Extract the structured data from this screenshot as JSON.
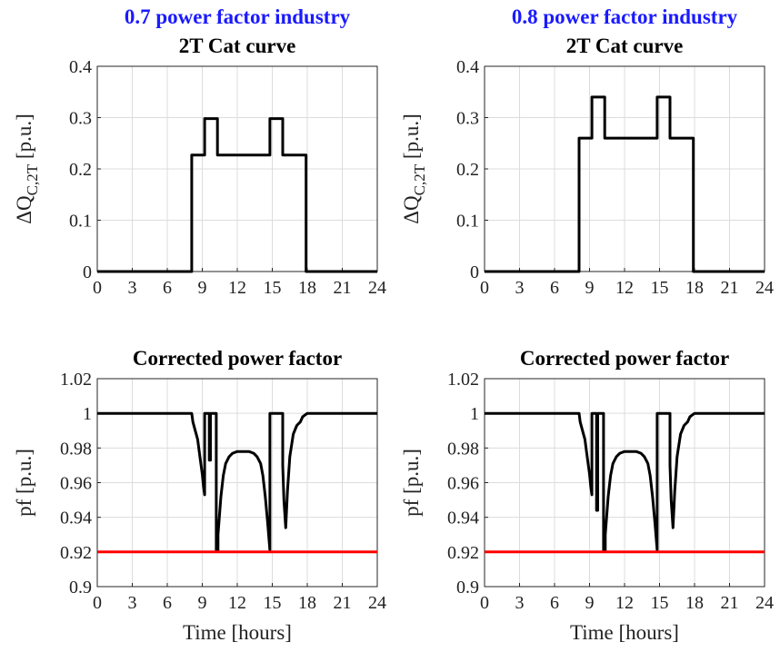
{
  "chart_data": [
    {
      "type": "line",
      "suptitle": "0.7 power factor industry",
      "title": "2T Cat curve",
      "ylabel_prefix": "ΔQ",
      "ylabel_sub": "C,2T",
      "ylabel_suffix": " [p.u.]",
      "xlabel": "",
      "xlim": [
        0,
        24
      ],
      "ylim": [
        0,
        0.4
      ],
      "xticks": [
        "0",
        "3",
        "6",
        "9",
        "12",
        "15",
        "18",
        "21",
        "24"
      ],
      "yticks": [
        "0",
        "0.1",
        "0.2",
        "0.3",
        "0.4"
      ],
      "grid": true,
      "series": [
        {
          "color": "#000000",
          "x": [
            0,
            8.1,
            8.1,
            9.2,
            9.2,
            10.3,
            10.3,
            14.8,
            14.8,
            15.9,
            15.9,
            17.9,
            17.9,
            24
          ],
          "y": [
            0,
            0,
            0.227,
            0.227,
            0.298,
            0.298,
            0.227,
            0.227,
            0.298,
            0.298,
            0.227,
            0.227,
            0,
            0
          ]
        }
      ]
    },
    {
      "type": "line",
      "suptitle": "0.8 power factor industry",
      "title": "2T Cat curve",
      "ylabel_prefix": "ΔQ",
      "ylabel_sub": "C,2T",
      "ylabel_suffix": " [p.u.]",
      "xlabel": "",
      "xlim": [
        0,
        24
      ],
      "ylim": [
        0,
        0.4
      ],
      "xticks": [
        "0",
        "3",
        "6",
        "9",
        "12",
        "15",
        "18",
        "21",
        "24"
      ],
      "yticks": [
        "0",
        "0.1",
        "0.2",
        "0.3",
        "0.4"
      ],
      "grid": true,
      "series": [
        {
          "color": "#000000",
          "x": [
            0,
            8.1,
            8.1,
            9.2,
            9.2,
            10.3,
            10.3,
            14.8,
            14.8,
            15.9,
            15.9,
            17.9,
            17.9,
            24
          ],
          "y": [
            0,
            0,
            0.26,
            0.26,
            0.34,
            0.34,
            0.26,
            0.26,
            0.34,
            0.34,
            0.26,
            0.26,
            0,
            0
          ]
        }
      ]
    },
    {
      "type": "line",
      "suptitle": "",
      "title": "Corrected power factor",
      "ylabel_prefix": "pf [p.u.]",
      "ylabel_sub": "",
      "ylabel_suffix": "",
      "xlabel": "Time [hours]",
      "xlim": [
        0,
        24
      ],
      "ylim": [
        0.9,
        1.02
      ],
      "xticks": [
        "0",
        "3",
        "6",
        "9",
        "12",
        "15",
        "18",
        "21",
        "24"
      ],
      "yticks": [
        "0.9",
        "0.92",
        "0.94",
        "0.96",
        "0.98",
        "1",
        "1.02"
      ],
      "grid": true,
      "series": [
        {
          "color": "#000000",
          "x": [
            0,
            8.1,
            8.2,
            8.4,
            8.6,
            8.8,
            9.0,
            9.1,
            9.2,
            9.2,
            9.6,
            9.6,
            9.7,
            9.7,
            10.2,
            10.2,
            10.35,
            10.35,
            10.6,
            10.8,
            11.0,
            11.3,
            11.6,
            12.0,
            12.5,
            13.0,
            13.4,
            13.7,
            14.0,
            14.2,
            14.4,
            14.6,
            14.8,
            14.8,
            15.9,
            15.9,
            16.0,
            16.15,
            16.3,
            16.5,
            16.8,
            17.1,
            17.4,
            17.6,
            17.8,
            18.0,
            24
          ],
          "y": [
            1.0,
            1.0,
            0.995,
            0.99,
            0.985,
            0.975,
            0.965,
            0.958,
            0.953,
            1.0,
            1.0,
            0.973,
            0.973,
            1.0,
            1.0,
            0.921,
            0.921,
            0.93,
            0.952,
            0.964,
            0.971,
            0.975,
            0.977,
            0.978,
            0.978,
            0.978,
            0.977,
            0.975,
            0.971,
            0.964,
            0.952,
            0.937,
            0.921,
            1.0,
            1.0,
            0.97,
            0.95,
            0.934,
            0.955,
            0.975,
            0.988,
            0.993,
            0.995,
            0.998,
            0.999,
            1.0,
            1.0
          ]
        },
        {
          "color": "#ff0000",
          "x": [
            0,
            24
          ],
          "y": [
            0.92,
            0.92
          ]
        }
      ]
    },
    {
      "type": "line",
      "suptitle": "",
      "title": "Corrected power factor",
      "ylabel_prefix": "pf [p.u.]",
      "ylabel_sub": "",
      "ylabel_suffix": "",
      "xlabel": "Time [hours]",
      "xlim": [
        0,
        24
      ],
      "ylim": [
        0.9,
        1.02
      ],
      "xticks": [
        "0",
        "3",
        "6",
        "9",
        "12",
        "15",
        "18",
        "21",
        "24"
      ],
      "yticks": [
        "0.9",
        "0.92",
        "0.94",
        "0.96",
        "0.98",
        "1",
        "1.02"
      ],
      "grid": true,
      "series": [
        {
          "color": "#000000",
          "x": [
            0,
            8.1,
            8.2,
            8.4,
            8.6,
            8.8,
            9.0,
            9.1,
            9.2,
            9.2,
            9.6,
            9.6,
            9.7,
            9.7,
            10.2,
            10.2,
            10.35,
            10.35,
            10.6,
            10.8,
            11.0,
            11.3,
            11.6,
            12.0,
            12.5,
            13.0,
            13.4,
            13.7,
            14.0,
            14.2,
            14.4,
            14.6,
            14.8,
            14.8,
            15.9,
            15.9,
            16.0,
            16.15,
            16.3,
            16.5,
            16.8,
            17.1,
            17.4,
            17.6,
            17.8,
            18.0,
            24
          ],
          "y": [
            1.0,
            1.0,
            0.995,
            0.99,
            0.985,
            0.975,
            0.965,
            0.958,
            0.953,
            1.0,
            1.0,
            0.944,
            0.944,
            1.0,
            1.0,
            0.921,
            0.921,
            0.93,
            0.952,
            0.964,
            0.971,
            0.975,
            0.977,
            0.978,
            0.978,
            0.978,
            0.977,
            0.975,
            0.971,
            0.964,
            0.952,
            0.937,
            0.921,
            1.0,
            1.0,
            0.97,
            0.95,
            0.934,
            0.955,
            0.975,
            0.988,
            0.993,
            0.995,
            0.998,
            0.999,
            1.0,
            1.0
          ]
        },
        {
          "color": "#ff0000",
          "x": [
            0,
            24
          ],
          "y": [
            0.92,
            0.92
          ]
        }
      ]
    }
  ]
}
